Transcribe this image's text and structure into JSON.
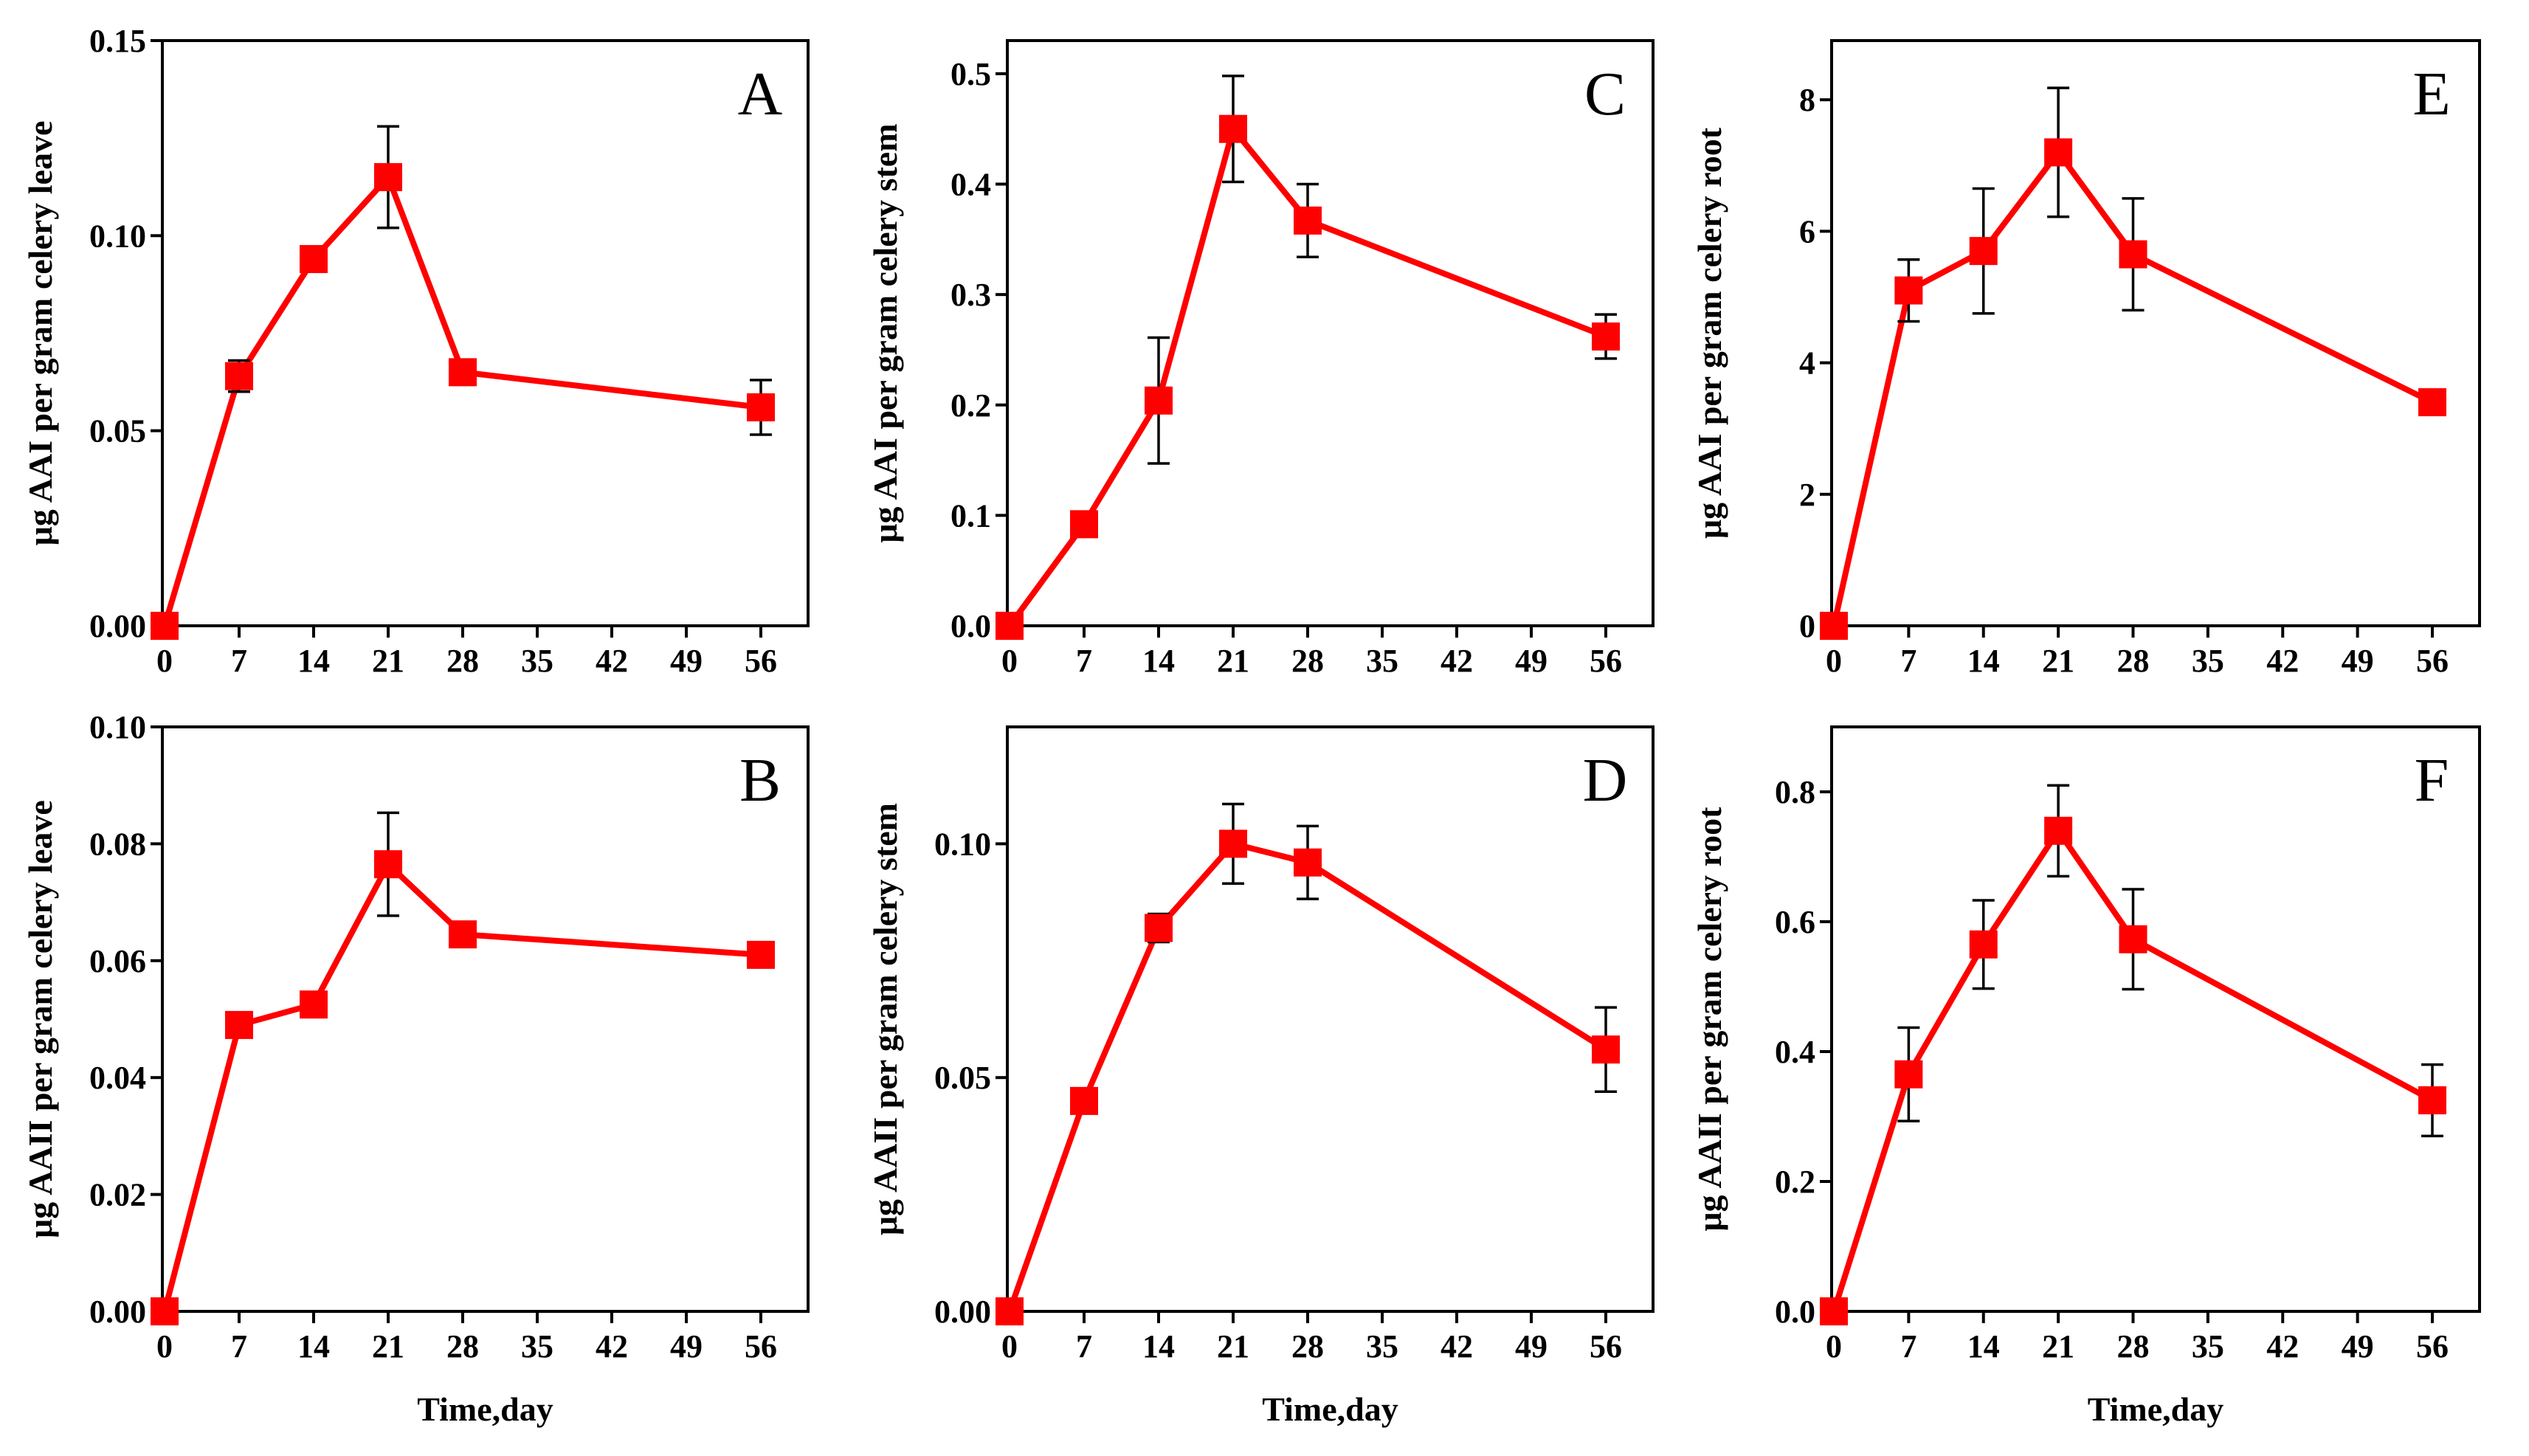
{
  "colors": {
    "series": "#ff0000",
    "axis": "#000000",
    "errorbar": "#000000",
    "background": "#ffffff"
  },
  "chart_data": [
    {
      "panel": "A",
      "type": "line",
      "xlabel": "",
      "ylabel": "μg AAI per gram celery leave",
      "x": [
        0,
        7,
        14,
        21,
        28,
        56
      ],
      "values": [
        0.0,
        0.064,
        0.094,
        0.115,
        0.065,
        0.056
      ],
      "errors": [
        0.0,
        0.004,
        0.002,
        0.013,
        0.003,
        0.007
      ],
      "xlim": [
        0,
        60
      ],
      "ylim": [
        0,
        0.15
      ],
      "xticks": [
        0,
        7,
        14,
        21,
        28,
        35,
        42,
        49,
        56
      ],
      "yticks": [
        0.0,
        0.05,
        0.1,
        0.15
      ],
      "yticklabels": [
        "0.00",
        "0.05",
        "0.10",
        "0.15"
      ],
      "grid": false
    },
    {
      "panel": "B",
      "type": "line",
      "xlabel": "Time,day",
      "ylabel": "μg AAII per gram celery leave",
      "x": [
        0,
        7,
        14,
        21,
        28,
        56
      ],
      "values": [
        0.0,
        0.049,
        0.0525,
        0.0765,
        0.0645,
        0.061
      ],
      "errors": [
        0.0,
        0.001,
        0.001,
        0.0088,
        0.001,
        0.0015
      ],
      "xlim": [
        0,
        60
      ],
      "ylim": [
        0,
        0.1
      ],
      "xticks": [
        0,
        7,
        14,
        21,
        28,
        35,
        42,
        49,
        56
      ],
      "yticks": [
        0.0,
        0.02,
        0.04,
        0.06,
        0.08,
        0.1
      ],
      "yticklabels": [
        "0.00",
        "0.02",
        "0.04",
        "0.06",
        "0.08",
        "0.10"
      ],
      "grid": false
    },
    {
      "panel": "C",
      "type": "line",
      "xlabel": "",
      "ylabel": "μg AAI per gram celery stem",
      "x": [
        0,
        7,
        14,
        21,
        28,
        56
      ],
      "values": [
        0.0,
        0.092,
        0.204,
        0.45,
        0.367,
        0.262
      ],
      "errors": [
        0.0,
        0.003,
        0.057,
        0.048,
        0.033,
        0.02
      ],
      "xlim": [
        0,
        60
      ],
      "ylim": [
        0,
        0.53
      ],
      "xticks": [
        0,
        7,
        14,
        21,
        28,
        35,
        42,
        49,
        56
      ],
      "yticks": [
        0.0,
        0.1,
        0.2,
        0.3,
        0.4,
        0.5
      ],
      "yticklabels": [
        "0.0",
        "0.1",
        "0.2",
        "0.3",
        "0.4",
        "0.5"
      ],
      "grid": false
    },
    {
      "panel": "D",
      "type": "line",
      "xlabel": "Time,day",
      "ylabel": "μg AAII per gram celery stem",
      "x": [
        0,
        7,
        14,
        21,
        28,
        56
      ],
      "values": [
        0.0,
        0.045,
        0.082,
        0.1,
        0.096,
        0.056
      ],
      "errors": [
        0.0,
        0.001,
        0.003,
        0.0085,
        0.0078,
        0.009
      ],
      "xlim": [
        0,
        60
      ],
      "ylim": [
        0,
        0.125
      ],
      "xticks": [
        0,
        7,
        14,
        21,
        28,
        35,
        42,
        49,
        56
      ],
      "yticks": [
        0.0,
        0.05,
        0.1
      ],
      "yticklabels": [
        "0.00",
        "0.05",
        "0.10"
      ],
      "grid": false
    },
    {
      "panel": "E",
      "type": "line",
      "xlabel": "",
      "ylabel": "μg AAI per gram celery root",
      "x": [
        0,
        7,
        14,
        21,
        28,
        56
      ],
      "values": [
        0.0,
        5.1,
        5.7,
        7.2,
        5.65,
        3.4
      ],
      "errors": [
        0.0,
        0.47,
        0.95,
        0.98,
        0.85,
        0.05
      ],
      "xlim": [
        0,
        60
      ],
      "ylim": [
        0,
        8.9
      ],
      "xticks": [
        0,
        7,
        14,
        21,
        28,
        35,
        42,
        49,
        56
      ],
      "yticks": [
        0,
        2,
        4,
        6,
        8
      ],
      "yticklabels": [
        "0",
        "2",
        "4",
        "6",
        "8"
      ],
      "grid": false
    },
    {
      "panel": "F",
      "type": "line",
      "xlabel": "Time,day",
      "ylabel": "μg AAII per gram celery root",
      "x": [
        0,
        7,
        14,
        21,
        28,
        56
      ],
      "values": [
        0.0,
        0.365,
        0.565,
        0.74,
        0.573,
        0.325
      ],
      "errors": [
        0.0,
        0.072,
        0.068,
        0.07,
        0.077,
        0.055
      ],
      "xlim": [
        0,
        60
      ],
      "ylim": [
        0,
        0.9
      ],
      "xticks": [
        0,
        7,
        14,
        21,
        28,
        35,
        42,
        49,
        56
      ],
      "yticks": [
        0.0,
        0.2,
        0.4,
        0.6,
        0.8
      ],
      "yticklabels": [
        "0.0",
        "0.2",
        "0.4",
        "0.6",
        "0.8"
      ],
      "grid": false
    }
  ]
}
